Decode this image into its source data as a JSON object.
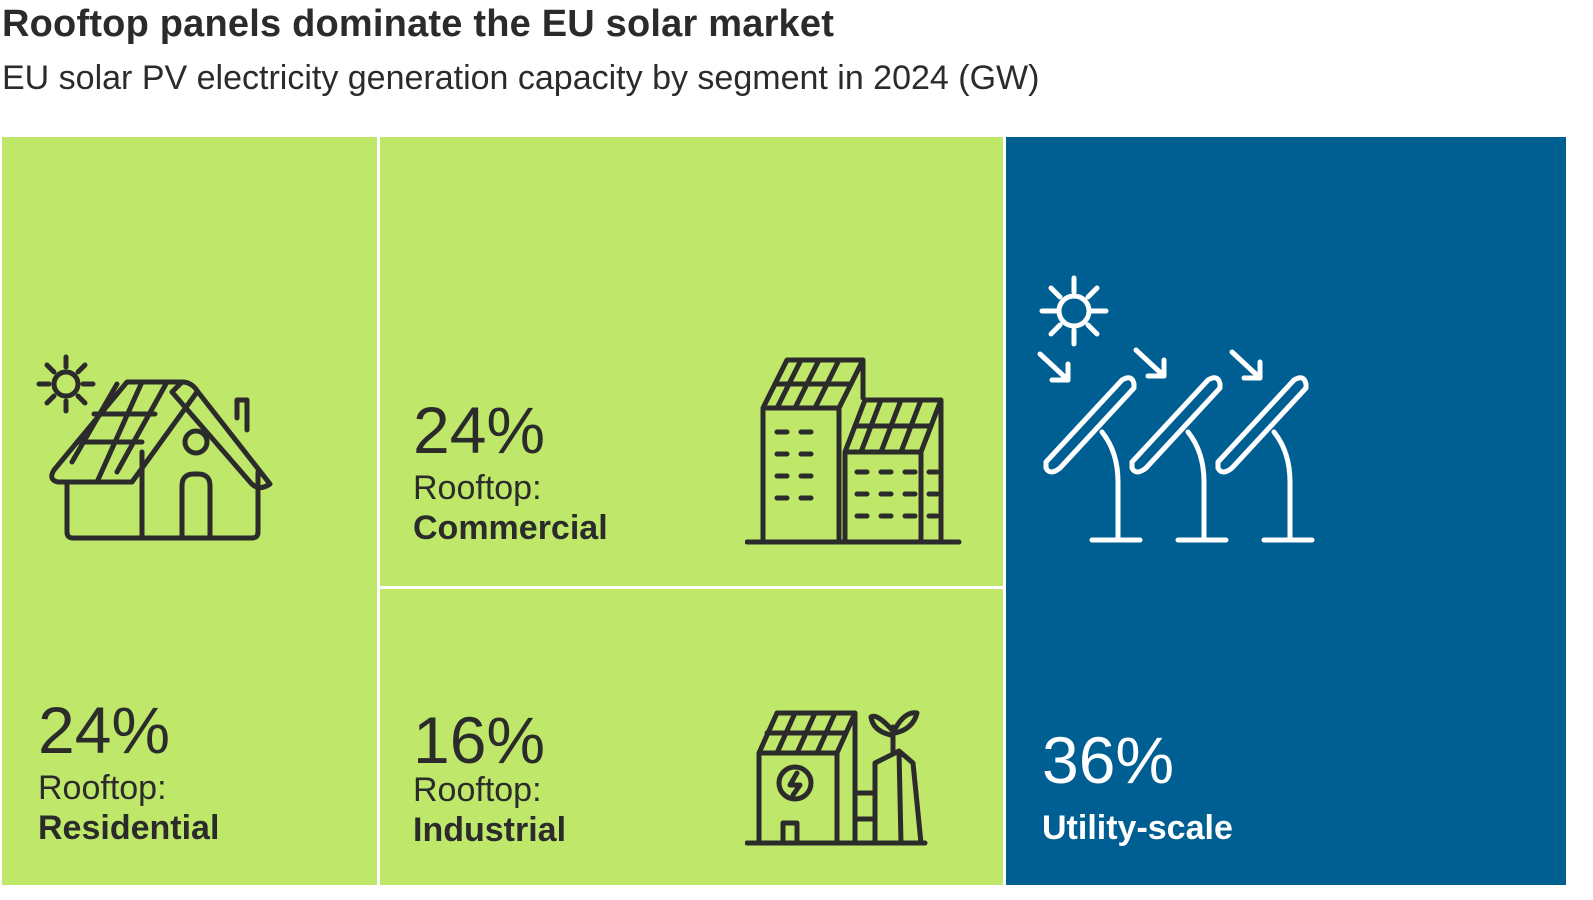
{
  "chart_data": {
    "type": "treemap",
    "title": "Rooftop panels dominate the EU solar market",
    "subtitle": "EU solar PV electricity generation capacity by segment in 2024 (GW)",
    "segments": [
      {
        "id": "residential",
        "value": 24,
        "value_label": "24%",
        "group_label": "Rooftop:",
        "name": "Residential",
        "color": "#bfe86a",
        "text_color": "#2b2b2b",
        "icon": "house-solar-icon"
      },
      {
        "id": "commercial",
        "value": 24,
        "value_label": "24%",
        "group_label": "Rooftop:",
        "name": "Commercial",
        "color": "#bfe86a",
        "text_color": "#2b2b2b",
        "icon": "commercial-buildings-solar-icon"
      },
      {
        "id": "industrial",
        "value": 16,
        "value_label": "16%",
        "group_label": "Rooftop:",
        "name": "Industrial",
        "color": "#bfe86a",
        "text_color": "#2b2b2b",
        "icon": "industrial-plant-solar-icon"
      },
      {
        "id": "utility",
        "value": 36,
        "value_label": "36%",
        "group_label": "",
        "name": "Utility-scale",
        "color": "#005f92",
        "text_color": "#ffffff",
        "icon": "solar-farm-icon"
      }
    ]
  }
}
